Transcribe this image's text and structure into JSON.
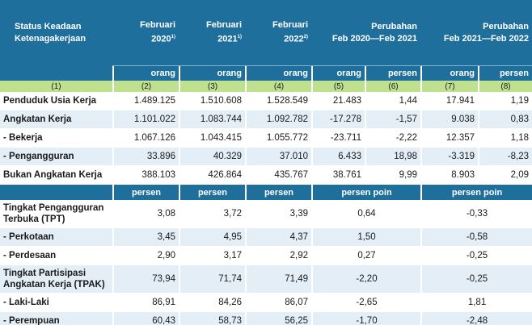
{
  "header": {
    "col0": [
      "Status Keadaan",
      "Ketenagakerjaan"
    ],
    "c2": {
      "line1": "Februari",
      "line2": "2020",
      "sup": "1)"
    },
    "c3": {
      "line1": "Februari",
      "line2": "2021",
      "sup": "1)"
    },
    "c4": {
      "line1": "Februari",
      "line2": "2022",
      "sup": "2)"
    },
    "c5": {
      "line1": "Perubahan",
      "line2": "Feb 2020—Feb 2021"
    },
    "c6": {
      "line1": "Perubahan",
      "line2": "Feb 2021—Feb 2022"
    }
  },
  "units": [
    "orang",
    "orang",
    "orang",
    "orang",
    "persen",
    "orang",
    "persen"
  ],
  "colnums": [
    "(1)",
    "(2)",
    "(3)",
    "(4)",
    "(5)",
    "(6)",
    "(7)",
    "(8)"
  ],
  "rows_a": [
    {
      "label": "Penduduk Usia Kerja",
      "v": [
        "1.489.125",
        "1.510.608",
        "1.528.549",
        "21.483",
        "1,44",
        "17.941",
        "1,19"
      ]
    },
    {
      "label": "Angkatan Kerja",
      "v": [
        "1.101.022",
        "1.083.744",
        "1.092.782",
        "-17.278",
        "-1,57",
        "9.038",
        "0,83"
      ]
    },
    {
      "label": "- Bekerja",
      "v": [
        "1.067.126",
        "1.043.415",
        "1.055.772",
        "-23.711",
        "-2,22",
        "12.357",
        "1,18"
      ]
    },
    {
      "label": "- Pengangguran",
      "v": [
        "33.896",
        "40.329",
        "37.010",
        "6.433",
        "18,98",
        "-3.319",
        "-8,23"
      ]
    },
    {
      "label": "Bukan Angkatan Kerja",
      "v": [
        "388.103",
        "426.864",
        "435.767",
        "38.761",
        "9,99",
        "8.903",
        "2,09"
      ]
    }
  ],
  "units2": [
    "persen",
    "persen",
    "persen",
    "persen poin",
    "persen poin"
  ],
  "rows_b": [
    {
      "label": "Tingkat Pengangguran Terbuka  (TPT)",
      "v": [
        "3,08",
        "3,72",
        "3,39",
        "0,64",
        "-0,33"
      ]
    },
    {
      "label": "- Perkotaan",
      "v": [
        "3,45",
        "4,95",
        "4,37",
        "1,50",
        "-0,58"
      ]
    },
    {
      "label": "- Perdesaan",
      "v": [
        "2,90",
        "3,17",
        "2,92",
        "0,27",
        "-0,25"
      ]
    },
    {
      "label": "Tingkat Partisipasi Angkatan Kerja (TPAK)",
      "v": [
        "73,94",
        "71,74",
        "71,49",
        "-2,20",
        "-0,25"
      ]
    },
    {
      "label": "- Laki-Laki",
      "v": [
        "86,91",
        "84,26",
        "86,07",
        "-2,65",
        "1,81"
      ]
    },
    {
      "label": "- Perempuan",
      "v": [
        "60,43",
        "58,73",
        "56,25",
        "-1,70",
        "-2,48"
      ]
    }
  ]
}
